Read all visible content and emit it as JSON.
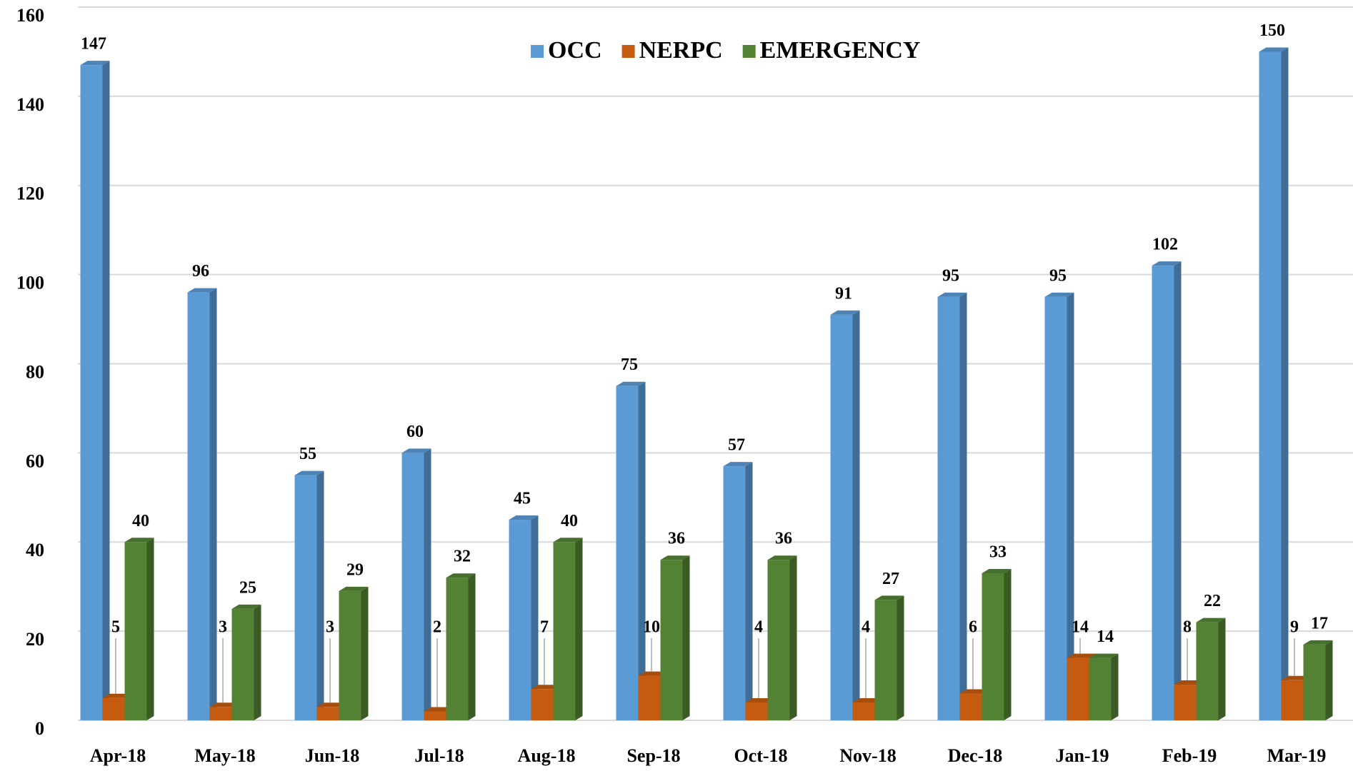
{
  "chart_data": {
    "type": "bar",
    "categories": [
      "Apr-18",
      "May-18",
      "Jun-18",
      "Jul-18",
      "Aug-18",
      "Sep-18",
      "Oct-18",
      "Nov-18",
      "Dec-18",
      "Jan-19",
      "Feb-19",
      "Mar-19"
    ],
    "series": [
      {
        "name": "OCC",
        "color": "#5b9bd5",
        "values": [
          147,
          96,
          55,
          60,
          45,
          75,
          57,
          91,
          95,
          95,
          102,
          150
        ]
      },
      {
        "name": "NERPC",
        "color": "#c55a11",
        "values": [
          5,
          3,
          3,
          2,
          7,
          10,
          4,
          4,
          6,
          14,
          8,
          9
        ]
      },
      {
        "name": "EMERGENCY",
        "color": "#548235",
        "values": [
          40,
          25,
          29,
          32,
          40,
          36,
          36,
          27,
          33,
          14,
          22,
          17
        ]
      }
    ],
    "ylim": [
      0,
      160
    ],
    "yticks": [
      0,
      20,
      40,
      60,
      80,
      100,
      120,
      140,
      160
    ],
    "grid": true,
    "legend": "top"
  }
}
